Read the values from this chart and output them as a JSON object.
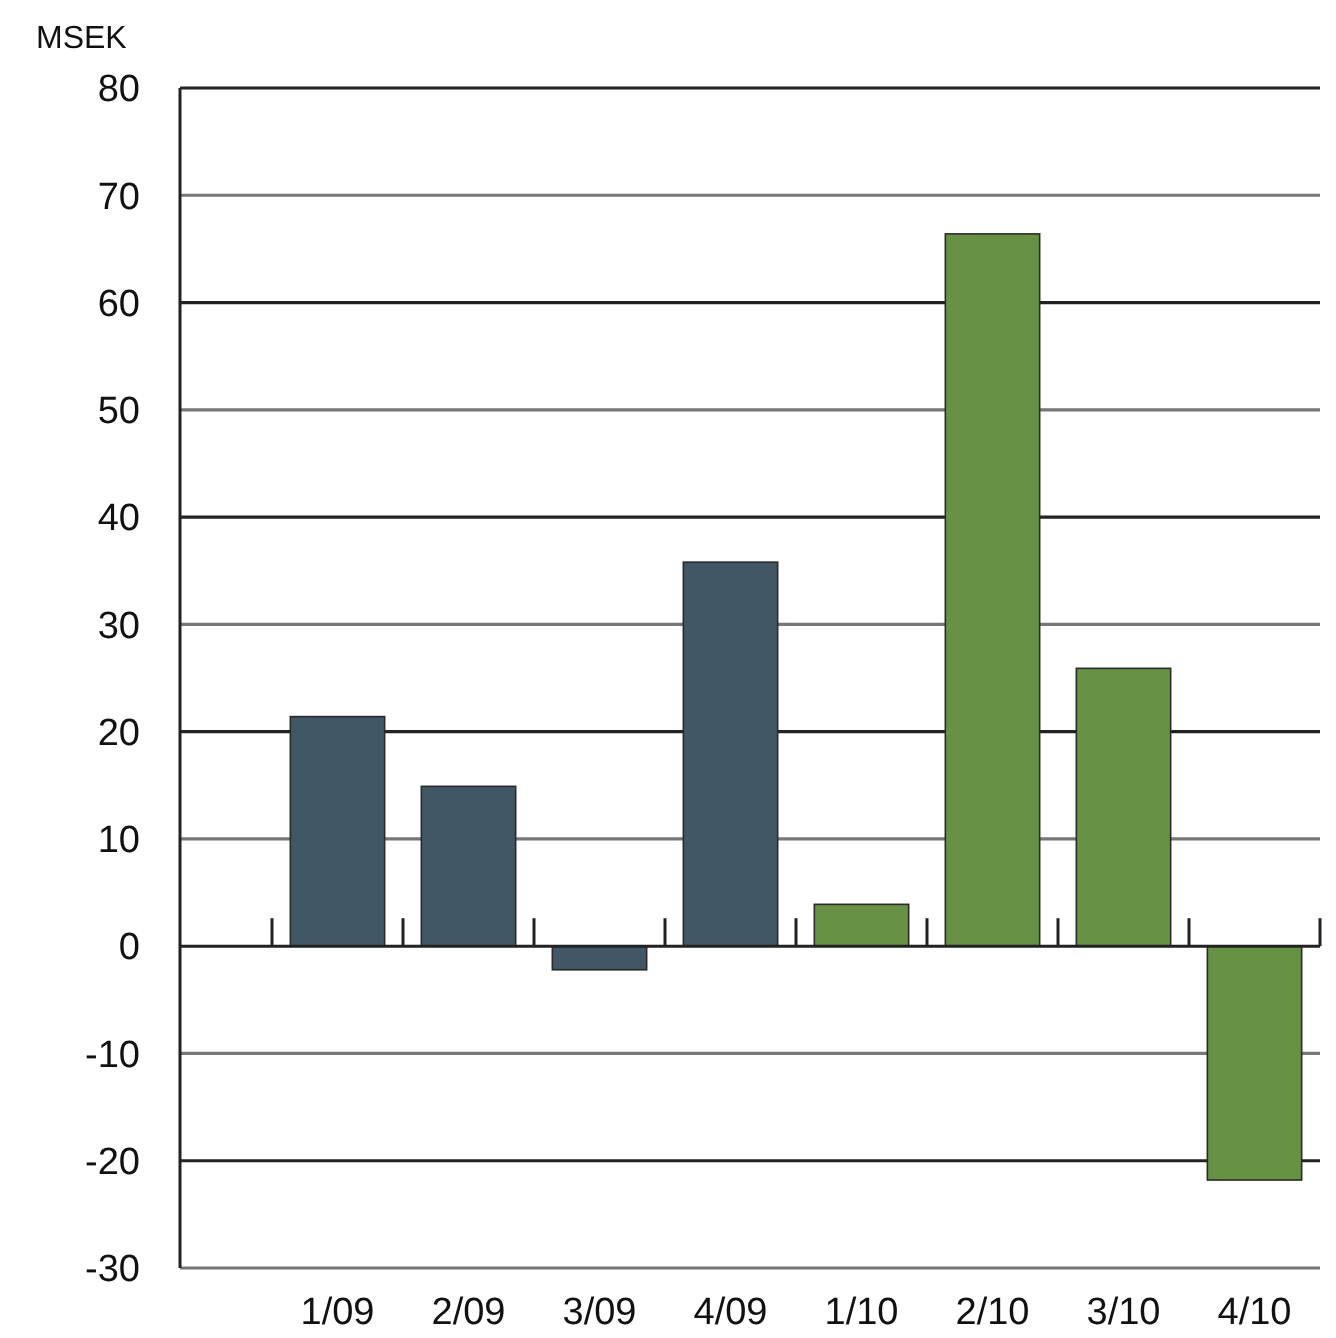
{
  "chart_data": {
    "type": "bar",
    "ylabel": "MSEK",
    "categories": [
      "1/09",
      "2/09",
      "3/09",
      "4/09",
      "1/10",
      "2/10",
      "3/10",
      "4/10"
    ],
    "values": [
      21.4,
      14.9,
      -2.2,
      35.8,
      3.9,
      66.4,
      25.9,
      -21.8
    ],
    "colors": [
      "#415765",
      "#415765",
      "#415765",
      "#415765",
      "#679145",
      "#679145",
      "#679145",
      "#679145"
    ],
    "ylim": [
      -30,
      80
    ],
    "yticks": [
      -30,
      -20,
      -10,
      0,
      10,
      20,
      30,
      40,
      50,
      60,
      70,
      80
    ],
    "grid": "y"
  }
}
